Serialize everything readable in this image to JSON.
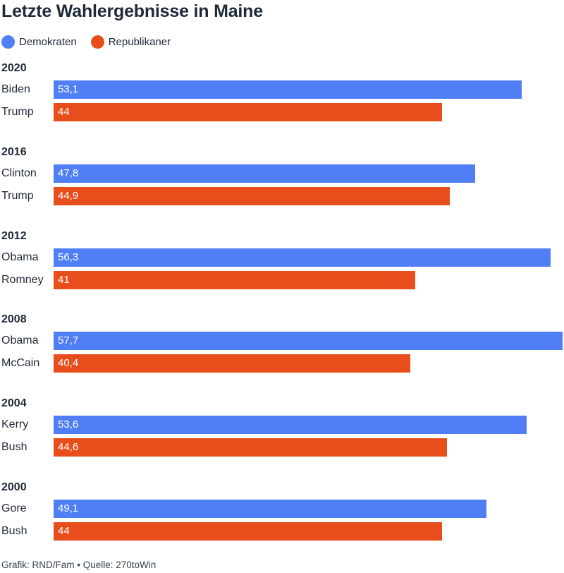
{
  "title": "Letzte Wahlergebnisse in Maine",
  "legend": [
    {
      "label": "Demokraten",
      "color": "#4f7ef5"
    },
    {
      "label": "Republikaner",
      "color": "#e84e1c"
    }
  ],
  "source": "Grafik: RND/Fam • Quelle: 270toWin",
  "chart_data": {
    "type": "bar",
    "orientation": "horizontal",
    "xlim": [
      0,
      57.7
    ],
    "grid": false,
    "legend_position": "top-left",
    "groups": [
      {
        "year": "2020",
        "bars": [
          {
            "candidate": "Biden",
            "party": "Demokraten",
            "value": 53.1,
            "label": "53,1"
          },
          {
            "candidate": "Trump",
            "party": "Republikaner",
            "value": 44,
            "label": "44"
          }
        ]
      },
      {
        "year": "2016",
        "bars": [
          {
            "candidate": "Clinton",
            "party": "Demokraten",
            "value": 47.8,
            "label": "47,8"
          },
          {
            "candidate": "Trump",
            "party": "Republikaner",
            "value": 44.9,
            "label": "44,9"
          }
        ]
      },
      {
        "year": "2012",
        "bars": [
          {
            "candidate": "Obama",
            "party": "Demokraten",
            "value": 56.3,
            "label": "56,3"
          },
          {
            "candidate": "Romney",
            "party": "Republikaner",
            "value": 41,
            "label": "41"
          }
        ]
      },
      {
        "year": "2008",
        "bars": [
          {
            "candidate": "Obama",
            "party": "Demokraten",
            "value": 57.7,
            "label": "57,7"
          },
          {
            "candidate": "McCain",
            "party": "Republikaner",
            "value": 40.4,
            "label": "40,4"
          }
        ]
      },
      {
        "year": "2004",
        "bars": [
          {
            "candidate": "Kerry",
            "party": "Demokraten",
            "value": 53.6,
            "label": "53,6"
          },
          {
            "candidate": "Bush",
            "party": "Republikaner",
            "value": 44.6,
            "label": "44,6"
          }
        ]
      },
      {
        "year": "2000",
        "bars": [
          {
            "candidate": "Gore",
            "party": "Demokraten",
            "value": 49.1,
            "label": "49,1"
          },
          {
            "candidate": "Bush",
            "party": "Republikaner",
            "value": 44,
            "label": "44"
          }
        ]
      }
    ]
  }
}
